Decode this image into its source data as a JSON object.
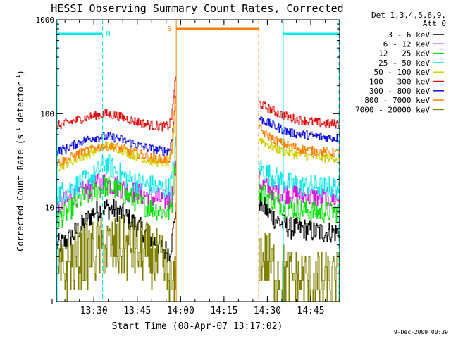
{
  "chart_data": {
    "type": "line",
    "title": "HESSI Observing Summary Count Rates, Corrected",
    "xlabel": "Start Time (08-Apr-07 13:17:02)",
    "ylabel_main": "Corrected Count Rate (s",
    "ylabel_sup1": "-1",
    "ylabel_mid": " detector",
    "ylabel_sup2": "-1",
    "ylabel_end": ")",
    "footer_date": "9-Dec-2009 00:39",
    "yscale": "log",
    "ylim": [
      1,
      1000
    ],
    "xlim": [
      "13:17:02",
      "14:55:00"
    ],
    "ytick_labels": [
      "1",
      "10",
      "100",
      "1000"
    ],
    "xtick_labels": [
      "13:30",
      "13:45",
      "14:00",
      "14:15",
      "14:30",
      "14:45"
    ],
    "legend": {
      "position": "right",
      "header": [
        "Det 1,3,4,5,6,9,",
        "Att 0"
      ],
      "entries": [
        {
          "label": "3 - 6 keV",
          "color": "#000000"
        },
        {
          "label": "6 - 12 keV",
          "color": "#e010e0"
        },
        {
          "label": "12 - 25 keV",
          "color": "#10e010"
        },
        {
          "label": "25 - 50 keV",
          "color": "#10e8e8"
        },
        {
          "label": "50 - 100 keV",
          "color": "#d0d000"
        },
        {
          "label": "100 - 300 keV",
          "color": "#e01010"
        },
        {
          "label": "300 - 800 keV",
          "color": "#1010e0"
        },
        {
          "label": "800 - 7000 keV",
          "color": "#ff8000"
        },
        {
          "label": "7000 - 20000 keV",
          "color": "#808000"
        }
      ]
    },
    "annotations": [
      {
        "label": "N",
        "color": "#10e8e8"
      },
      {
        "label": "S",
        "color": "#ff8000"
      }
    ],
    "markers": {
      "night_lines": [
        {
          "time": "13:17:02",
          "style": "solid"
        },
        {
          "time": "13:33:00",
          "style": "dashed"
        },
        {
          "time": "14:35:30",
          "style": "solid"
        },
        {
          "time": "14:55:00",
          "style": "dashed"
        }
      ],
      "saa_lines": [
        {
          "time": "13:58:30",
          "style": "solid"
        },
        {
          "time": "14:27:00",
          "style": "dashed"
        }
      ],
      "night_bars": [
        {
          "start": "13:17:02",
          "end": "13:33:00"
        },
        {
          "start": "14:35:30",
          "end": "14:55:00"
        }
      ],
      "saa_bars": [
        {
          "start": "13:58:30",
          "end": "14:27:00"
        }
      ]
    },
    "data_gap": {
      "start": "13:58:30",
      "end": "14:27:00"
    },
    "series": [
      {
        "name": "3 - 6 keV",
        "color": "#000000",
        "x": [
          "13:17",
          "13:20",
          "13:25",
          "13:30",
          "13:34",
          "13:38",
          "13:42",
          "13:46",
          "13:50",
          "13:54",
          "13:56",
          "13:57",
          "13:58",
          "14:27",
          "14:30",
          "14:34",
          "14:38",
          "14:42",
          "14:46",
          "14:50",
          "14:55"
        ],
        "y": [
          4.0,
          4.3,
          6,
          9,
          10,
          9.3,
          7.5,
          6,
          4.6,
          3.6,
          3.4,
          4.5,
          9,
          12,
          9,
          7,
          6,
          6,
          5.5,
          5.5,
          5.5
        ]
      },
      {
        "name": "6 - 12 keV",
        "color": "#e010e0",
        "x": [
          "13:17",
          "13:20",
          "13:25",
          "13:30",
          "13:34",
          "13:38",
          "13:42",
          "13:46",
          "13:50",
          "13:54",
          "13:56",
          "13:57",
          "13:58",
          "14:27",
          "14:30",
          "14:34",
          "14:38",
          "14:42",
          "14:46",
          "14:50",
          "14:55"
        ],
        "y": [
          11,
          11.5,
          14,
          17,
          18.5,
          17,
          15,
          14,
          13,
          12,
          12,
          14,
          25,
          19,
          16,
          15,
          14,
          13.5,
          13,
          12.5,
          12.5
        ]
      },
      {
        "name": "12 - 25 keV",
        "color": "#10e010",
        "x": [
          "13:17",
          "13:20",
          "13:25",
          "13:30",
          "13:34",
          "13:38",
          "13:42",
          "13:46",
          "13:50",
          "13:54",
          "13:56",
          "13:57",
          "13:58",
          "14:27",
          "14:30",
          "14:34",
          "14:38",
          "14:42",
          "14:46",
          "14:50",
          "14:55"
        ],
        "y": [
          7.5,
          8.5,
          12,
          15,
          17,
          15.5,
          13,
          11,
          10,
          9,
          9,
          11,
          30,
          16,
          13,
          11,
          10,
          9.5,
          9,
          9,
          9
        ]
      },
      {
        "name": "25 - 50 keV",
        "color": "#10e8e8",
        "x": [
          "13:17",
          "13:20",
          "13:25",
          "13:30",
          "13:34",
          "13:38",
          "13:42",
          "13:46",
          "13:50",
          "13:54",
          "13:56",
          "13:57",
          "13:58",
          "14:27",
          "14:30",
          "14:34",
          "14:38",
          "14:42",
          "14:46",
          "14:50",
          "14:55"
        ],
        "y": [
          14,
          15,
          18,
          22,
          30,
          24,
          20,
          18,
          17,
          16,
          16,
          20,
          45,
          27,
          23,
          20,
          18,
          17,
          17,
          16.5,
          16.5
        ]
      },
      {
        "name": "50 - 100 keV",
        "color": "#d0d000",
        "x": [
          "13:17",
          "13:20",
          "13:25",
          "13:30",
          "13:34",
          "13:38",
          "13:42",
          "13:46",
          "13:50",
          "13:54",
          "13:56",
          "13:57",
          "13:58",
          "14:27",
          "14:30",
          "14:34",
          "14:38",
          "14:42",
          "14:46",
          "14:50",
          "14:55"
        ],
        "y": [
          27,
          29,
          34,
          40,
          46,
          43,
          38,
          34,
          31,
          30,
          30,
          36,
          120,
          55,
          47,
          41,
          38,
          36,
          35,
          34,
          34
        ]
      },
      {
        "name": "100 - 300 keV",
        "color": "#e01010",
        "x": [
          "13:17",
          "13:20",
          "13:25",
          "13:30",
          "13:34",
          "13:38",
          "13:42",
          "13:46",
          "13:50",
          "13:54",
          "13:56",
          "13:57",
          "13:58",
          "14:27",
          "14:30",
          "14:34",
          "14:38",
          "14:42",
          "14:46",
          "14:50",
          "14:55"
        ],
        "y": [
          75,
          78,
          87,
          95,
          100,
          95,
          87,
          80,
          75,
          73,
          75,
          100,
          230,
          130,
          115,
          100,
          90,
          85,
          82,
          78,
          78
        ]
      },
      {
        "name": "300 - 800 keV",
        "color": "#1010e0",
        "x": [
          "13:17",
          "13:20",
          "13:25",
          "13:30",
          "13:34",
          "13:38",
          "13:42",
          "13:46",
          "13:50",
          "13:54",
          "13:56",
          "13:57",
          "13:58",
          "14:27",
          "14:30",
          "14:34",
          "14:38",
          "14:42",
          "14:46",
          "14:50",
          "14:55"
        ],
        "y": [
          40,
          42,
          50,
          56,
          57,
          55,
          50,
          45,
          42,
          40,
          41,
          55,
          150,
          90,
          80,
          70,
          63,
          60,
          58,
          56,
          55
        ]
      },
      {
        "name": "800 - 7000 keV",
        "color": "#ff8000",
        "x": [
          "13:17",
          "13:20",
          "13:25",
          "13:30",
          "13:34",
          "13:38",
          "13:42",
          "13:46",
          "13:50",
          "13:54",
          "13:56",
          "13:57",
          "13:58",
          "14:27",
          "14:30",
          "14:34",
          "14:38",
          "14:42",
          "14:46",
          "14:50",
          "14:55"
        ],
        "y": [
          30,
          32,
          38,
          43,
          45,
          44,
          40,
          37,
          34,
          32,
          33,
          45,
          140,
          70,
          58,
          50,
          45,
          42,
          40,
          39,
          38
        ]
      },
      {
        "name": "7000 - 20000 keV",
        "color": "#808000",
        "x": [
          "13:17",
          "13:20",
          "13:25",
          "13:30",
          "13:34",
          "13:38",
          "13:42",
          "13:46",
          "13:50",
          "13:54",
          "13:56",
          "13:57",
          "13:58",
          "14:27",
          "14:30",
          "14:34",
          "14:38",
          "14:42",
          "14:46",
          "14:50",
          "14:55"
        ],
        "y": [
          1.6,
          2.2,
          3.0,
          3.4,
          3.7,
          3.7,
          3.6,
          3.4,
          3.0,
          2.2,
          1.6,
          1.3,
          1.4,
          3.2,
          2.6,
          2.0,
          1.7,
          1.7,
          1.6,
          1.5,
          1.6
        ]
      }
    ]
  }
}
